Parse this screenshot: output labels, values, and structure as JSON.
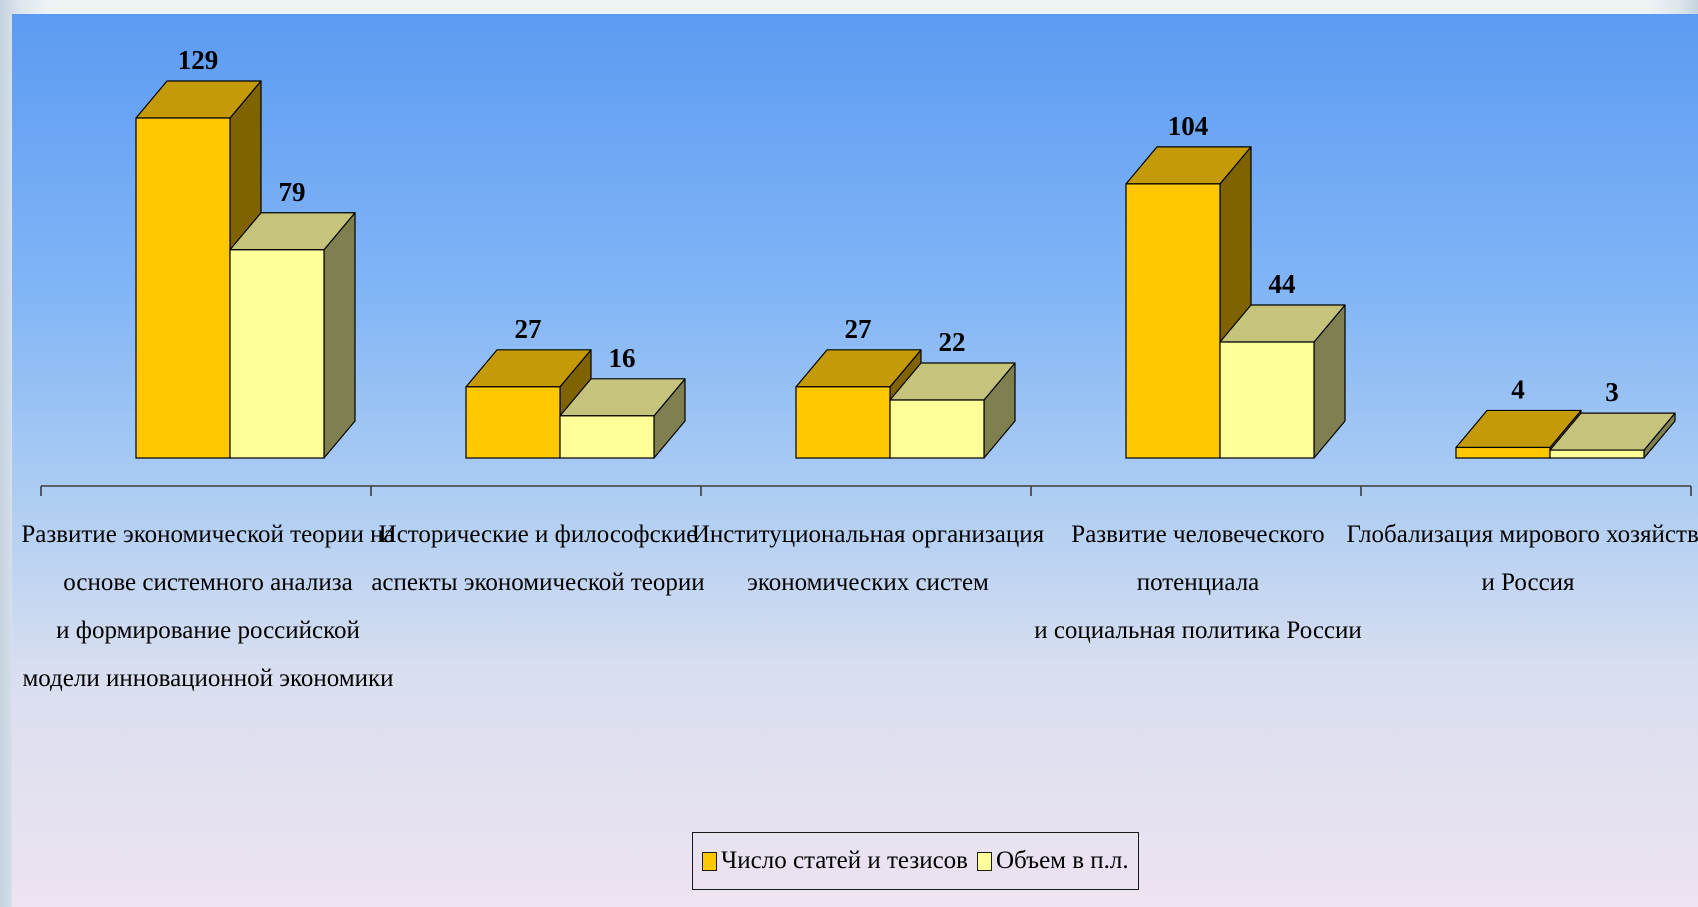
{
  "chart_data": {
    "type": "bar",
    "categories": [
      [
        "Развитие экономической теории на",
        "основе системного анализа",
        "и формирование российской",
        "модели инновационной экономики"
      ],
      [
        "Исторические и философские",
        "аспекты экономической теории"
      ],
      [
        "Институциональная организация",
        "экономических систем"
      ],
      [
        "Развитие человеческого",
        "потенциала",
        "и социальная политика России"
      ],
      [
        "Глобализация мирового хозяйства",
        "и Россия"
      ]
    ],
    "series": [
      {
        "name": "Число статей и тезисов",
        "values": [
          129,
          27,
          27,
          104,
          4
        ]
      },
      {
        "name": "Объем в п.л.",
        "values": [
          79,
          16,
          22,
          44,
          3
        ]
      }
    ],
    "ylim": [
      0,
      129
    ],
    "grid": false,
    "legend_position": "bottom",
    "three_d": true,
    "colors": {
      "series_1_front": "#ffc800",
      "series_1_top": "#c49a08",
      "series_1_side": "#7f6300",
      "series_2_front": "#ffff99",
      "series_2_top": "#c6c47c",
      "series_2_side": "#7f7f50",
      "axis": "#3c3c3c"
    }
  }
}
